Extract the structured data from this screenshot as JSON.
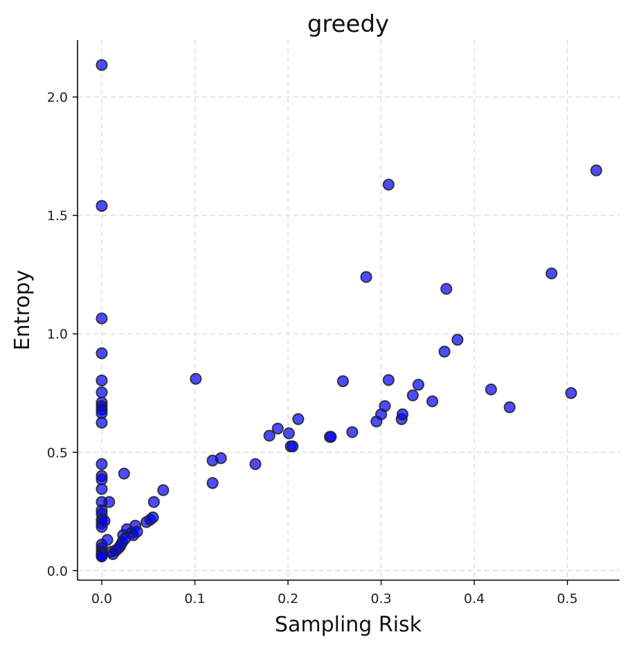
{
  "chart_data": {
    "type": "scatter",
    "title": "greedy",
    "xlabel": "Sampling Risk",
    "ylabel": "Entropy",
    "xlim": [
      -0.026,
      0.556
    ],
    "ylim": [
      -0.04,
      2.24
    ],
    "xticks": [
      "0.0",
      "0.1",
      "0.2",
      "0.3",
      "0.4",
      "0.5"
    ],
    "xtick_values": [
      0.0,
      0.1,
      0.2,
      0.3,
      0.4,
      0.5
    ],
    "yticks": [
      "0.0",
      "0.5",
      "1.0",
      "1.5",
      "2.0"
    ],
    "ytick_values": [
      0.0,
      0.5,
      1.0,
      1.5,
      2.0
    ],
    "grid": true,
    "point_color": "#0000ff",
    "edge_color": "#222222",
    "points": [
      [
        0.0,
        2.135
      ],
      [
        0.0,
        1.54
      ],
      [
        0.0,
        1.065
      ],
      [
        0.0,
        0.918
      ],
      [
        0.0,
        0.803
      ],
      [
        0.0,
        0.753
      ],
      [
        0.0,
        0.71
      ],
      [
        0.0,
        0.695
      ],
      [
        0.0,
        0.68
      ],
      [
        0.0,
        0.665
      ],
      [
        0.0,
        0.625
      ],
      [
        0.0,
        0.45
      ],
      [
        0.0,
        0.4
      ],
      [
        0.0,
        0.385
      ],
      [
        0.0,
        0.345
      ],
      [
        0.0,
        0.29
      ],
      [
        0.0,
        0.255
      ],
      [
        0.0,
        0.24
      ],
      [
        0.0,
        0.215
      ],
      [
        0.0,
        0.2
      ],
      [
        0.0,
        0.185
      ],
      [
        0.0,
        0.11
      ],
      [
        0.0,
        0.095
      ],
      [
        0.0,
        0.08
      ],
      [
        0.0,
        0.07
      ],
      [
        0.0,
        0.065
      ],
      [
        0.0,
        0.06
      ],
      [
        0.003,
        0.21
      ],
      [
        0.006,
        0.13
      ],
      [
        0.008,
        0.29
      ],
      [
        0.01,
        0.08
      ],
      [
        0.012,
        0.07
      ],
      [
        0.015,
        0.085
      ],
      [
        0.018,
        0.095
      ],
      [
        0.02,
        0.105
      ],
      [
        0.022,
        0.12
      ],
      [
        0.023,
        0.15
      ],
      [
        0.024,
        0.41
      ],
      [
        0.025,
        0.135
      ],
      [
        0.027,
        0.175
      ],
      [
        0.032,
        0.16
      ],
      [
        0.034,
        0.15
      ],
      [
        0.036,
        0.19
      ],
      [
        0.038,
        0.165
      ],
      [
        0.048,
        0.205
      ],
      [
        0.052,
        0.215
      ],
      [
        0.055,
        0.225
      ],
      [
        0.056,
        0.29
      ],
      [
        0.066,
        0.34
      ],
      [
        0.101,
        0.81
      ],
      [
        0.119,
        0.465
      ],
      [
        0.119,
        0.37
      ],
      [
        0.128,
        0.475
      ],
      [
        0.165,
        0.45
      ],
      [
        0.18,
        0.57
      ],
      [
        0.189,
        0.6
      ],
      [
        0.201,
        0.58
      ],
      [
        0.203,
        0.525
      ],
      [
        0.205,
        0.525
      ],
      [
        0.211,
        0.64
      ],
      [
        0.245,
        0.565
      ],
      [
        0.246,
        0.565
      ],
      [
        0.259,
        0.8
      ],
      [
        0.269,
        0.585
      ],
      [
        0.284,
        1.24
      ],
      [
        0.295,
        0.63
      ],
      [
        0.3,
        0.66
      ],
      [
        0.304,
        0.695
      ],
      [
        0.308,
        0.805
      ],
      [
        0.308,
        1.63
      ],
      [
        0.322,
        0.64
      ],
      [
        0.323,
        0.66
      ],
      [
        0.334,
        0.74
      ],
      [
        0.34,
        0.785
      ],
      [
        0.355,
        0.715
      ],
      [
        0.368,
        0.925
      ],
      [
        0.37,
        1.19
      ],
      [
        0.382,
        0.975
      ],
      [
        0.418,
        0.765
      ],
      [
        0.438,
        0.69
      ],
      [
        0.483,
        1.255
      ],
      [
        0.504,
        0.75
      ],
      [
        0.531,
        1.69
      ]
    ]
  }
}
